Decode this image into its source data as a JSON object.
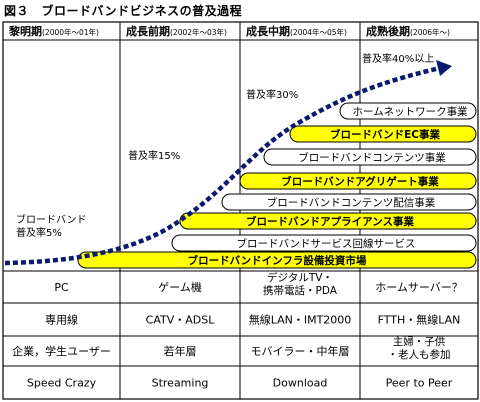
{
  "figure": {
    "title": "図３　ブロードバンドビジネスの普及過程"
  },
  "phases": [
    {
      "name": "黎明期",
      "period": "(2000年〜01年)"
    },
    {
      "name": "成長前期",
      "period": "(2002年〜03年)"
    },
    {
      "name": "成長中期",
      "period": "(2004年〜05年)"
    },
    {
      "name": "成熟後期",
      "period": "(2006年〜)"
    }
  ],
  "adoption_labels": [
    {
      "line1": "ブロードバンド",
      "line2": "普及率5%"
    },
    {
      "line1": "普及率15%",
      "line2": ""
    },
    {
      "line1": "普及率30%",
      "line2": ""
    },
    {
      "line1": "普及率40%以上",
      "line2": ""
    }
  ],
  "business_bars": [
    {
      "label": "ブロードバンドインフラ設備投資市場",
      "style": "yellow"
    },
    {
      "label": "ブロードバンドサービス回線サービス",
      "style": "white"
    },
    {
      "label": "ブロードバンドアプライアンス事業",
      "style": "yellow"
    },
    {
      "label": "ブロードバンドコンテンツ配信事業",
      "style": "white"
    },
    {
      "label": "ブロードバンドアグリゲート事業",
      "style": "yellow"
    },
    {
      "label": "ブロードバンドコンテンツ事業",
      "style": "white"
    },
    {
      "label": "ブロードバンドEC事業",
      "style": "yellow"
    },
    {
      "label": "ホームネットワーク事業",
      "style": "white"
    }
  ],
  "table_rows": [
    {
      "cells": [
        "PC",
        "ゲーム機",
        "デジタルTV・携帯電話・PDA",
        "ホームサーバー？"
      ]
    },
    {
      "cells": [
        "専用線",
        "CATV・ADSL",
        "無線LAN・IMT2000",
        "FTTH・無線LAN"
      ]
    },
    {
      "cells": [
        "企業，学生ユーザー",
        "若年層",
        "モバイラー・中年層",
        "主婦・子供・老人も参加"
      ]
    },
    {
      "cells": [
        "Speed Crazy",
        "Streaming",
        "Download",
        "Peer to Peer"
      ]
    }
  ],
  "colors": {
    "bar_yellow": "#ffff00",
    "bar_white": "#ffffff",
    "curve": "#0a1a6e",
    "line": "#000000"
  }
}
